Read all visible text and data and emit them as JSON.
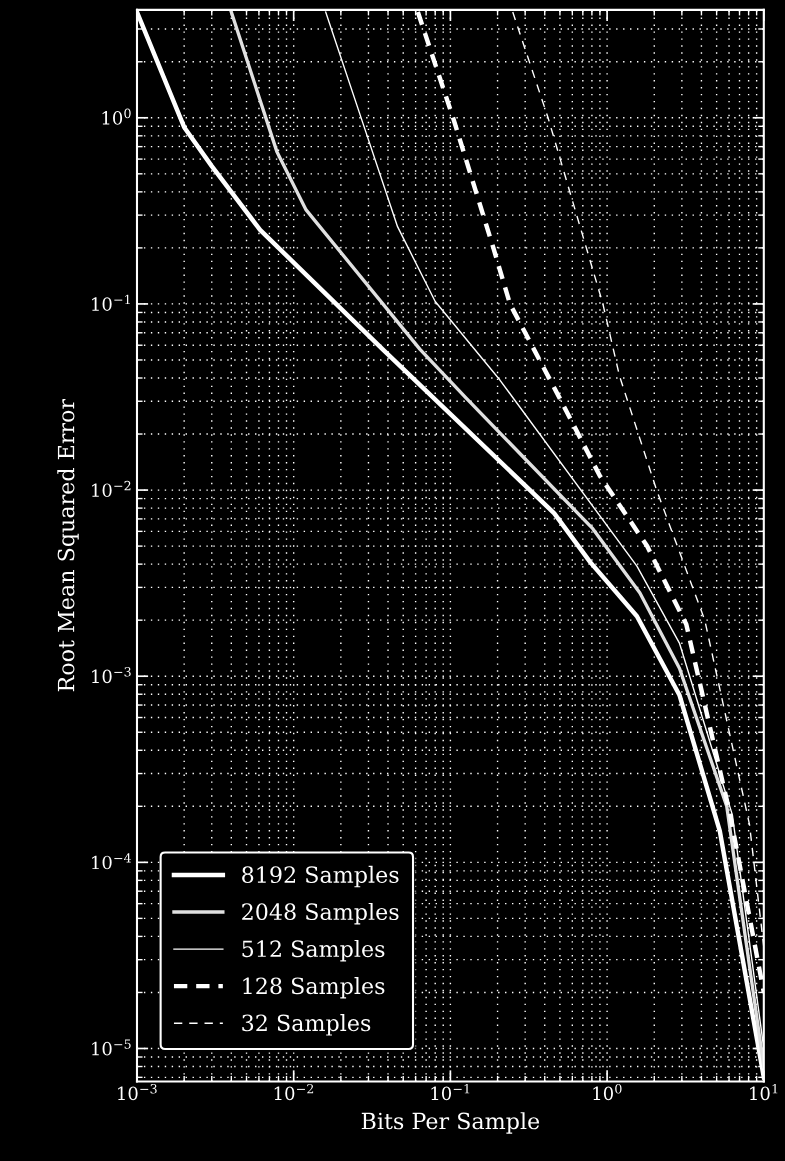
{
  "chart_data": {
    "type": "line",
    "xlabel": "Bits Per Sample",
    "ylabel": "Root Mean Squared Error",
    "log": "xy",
    "grid": true,
    "legend": "bottom left",
    "xlim": [
      0.001,
      10
    ],
    "ylim": [
      6.65e-06,
      3.8
    ],
    "xticks": [
      {
        "value": 0.001,
        "label": "10$^{−3}$"
      },
      {
        "value": 0.01,
        "label": "10$^{−2}$"
      },
      {
        "value": 0.1,
        "label": "10$^{−1}$"
      },
      {
        "value": 1,
        "label": "10$^{0}$"
      },
      {
        "value": 10,
        "label": "10$^{1}$"
      }
    ],
    "yticks": [
      {
        "value": 1e-05,
        "label": "10$^{−5}$"
      },
      {
        "value": 0.0001,
        "label": "10$^{−4}$"
      },
      {
        "value": 0.001,
        "label": "10$^{−3}$"
      },
      {
        "value": 0.01,
        "label": "10$^{−2}$"
      },
      {
        "value": 0.1,
        "label": "10$^{−1}$"
      },
      {
        "value": 1,
        "label": "10$^{0}$"
      }
    ],
    "series": [
      {
        "name": "8192 Samples",
        "color": "#ffffff",
        "line_style": "solid",
        "x": [
          0.001,
          0.002,
          0.003,
          0.0061,
          0.037,
          0.46,
          0.78,
          1.55,
          2.9,
          5.24,
          10
        ],
        "values": [
          3.7,
          0.89,
          0.55,
          0.25,
          0.057,
          0.0075,
          0.0041,
          0.0021,
          0.00079,
          0.000147,
          7e-06
        ]
      },
      {
        "name": "2048 Samples",
        "color": "#e0e0e0",
        "line_style": "solid",
        "x": [
          0.004,
          0.0078,
          0.012,
          0.064,
          0.127,
          0.81,
          1.62,
          2.9,
          5.8,
          10
        ],
        "values": [
          3.7,
          0.66,
          0.32,
          0.057,
          0.031,
          0.0062,
          0.0028,
          0.0011,
          0.0002,
          8e-06
        ]
      },
      {
        "name": "512 Samples",
        "color": "#ffffff",
        "line_style": "solid",
        "x": [
          0.016,
          0.029,
          0.046,
          0.08,
          0.207,
          1.55,
          2.9,
          6.3,
          10
        ],
        "values": [
          3.7,
          0.83,
          0.26,
          0.103,
          0.039,
          0.0039,
          0.0015,
          0.00018,
          1e-05
        ]
      },
      {
        "name": "128 Samples",
        "color": "#ffffff",
        "line_style": "dashed",
        "x": [
          0.062,
          0.104,
          0.187,
          0.24,
          0.5,
          0.9,
          1.8,
          3.2,
          6.1,
          10
        ],
        "values": [
          3.7,
          1.0,
          0.203,
          0.1,
          0.031,
          0.0119,
          0.005,
          0.0019,
          0.00018,
          2e-05
        ]
      },
      {
        "name": "32 Samples",
        "color": "#ffffff",
        "line_style": "dashed",
        "x": [
          0.25,
          0.42,
          0.6,
          0.94,
          1.2,
          2.07,
          4.2,
          8.1,
          10
        ],
        "values": [
          3.7,
          1.0,
          0.36,
          0.1,
          0.041,
          0.01,
          0.002,
          0.00016,
          3.5e-05
        ]
      }
    ]
  }
}
